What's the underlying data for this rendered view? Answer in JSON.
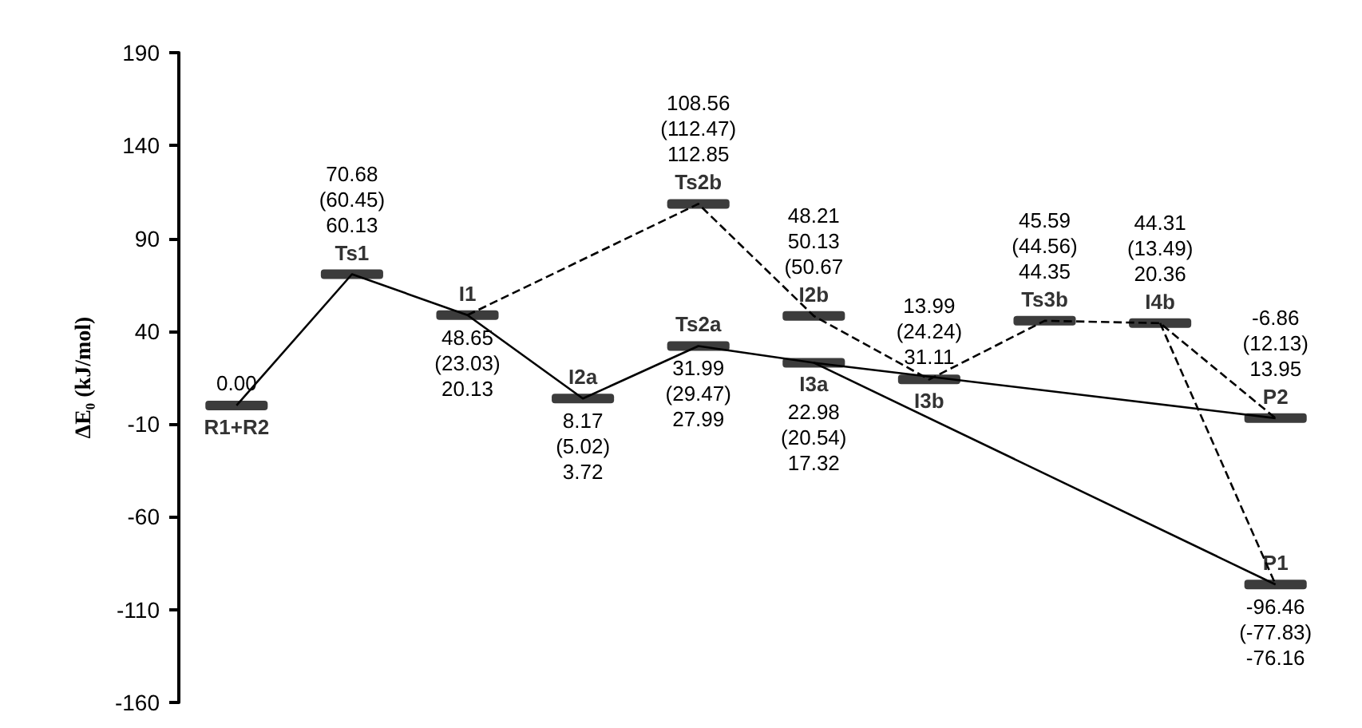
{
  "chart_data": {
    "type": "line",
    "ylabel": "ΔE₀ (kJ/mol)",
    "categories": [
      null,
      null,
      null,
      null,
      null,
      null,
      null,
      null,
      null,
      null
    ],
    "ylim": [
      -160,
      190
    ],
    "yticks": [
      -160,
      -110,
      -60,
      -10,
      40,
      90,
      140,
      190
    ],
    "tick_labels": "y",
    "grid": false,
    "series": [
      {
        "line_style": "solid",
        "color": "#000000",
        "values": [
          0.0,
          70.68,
          48.65,
          3.72,
          31.99,
          22.98,
          null,
          null,
          null,
          -96.46
        ],
        "value_labels": [
          "0.00",
          "70.68\n(60.45)\n60.13",
          "48.65\n(23.03)\n20.13",
          "8.17\n(5.02)\n3.72",
          "31.99\n(29.47)\n27.99",
          "22.98\n(20.54)\n17.32",
          null,
          null,
          null,
          "-96.46\n(-77.83)\n-76.16"
        ]
      },
      {
        "line_style": "solid",
        "color": "#000000",
        "values": [
          null,
          null,
          null,
          null,
          null,
          22.98,
          null,
          null,
          null,
          -6.86
        ],
        "value_labels": [
          null,
          null,
          null,
          null,
          null,
          null,
          null,
          null,
          null,
          "-6.86\n(12.13)\n13.95"
        ]
      },
      {
        "line_style": "dashed",
        "color": "#000000",
        "values": [
          null,
          null,
          48.65,
          null,
          108.56,
          48.21,
          13.99,
          45.59,
          44.31,
          -6.86
        ],
        "value_labels": [
          null,
          null,
          null,
          null,
          "108.56\n(112.47)\n112.85",
          "48.21\n50.13\n(50.67",
          "13.99\n(24.24)\n31.11",
          "45.59\n(44.56)\n44.35",
          "44.31\n(13.49)\n20.36",
          null
        ]
      },
      {
        "line_style": "dashed",
        "color": "#000000",
        "values": [
          null,
          null,
          null,
          null,
          null,
          null,
          null,
          null,
          44.31,
          -96.46
        ]
      }
    ],
    "annotations": [
      "R1+R2",
      "Ts1",
      "I1",
      "I2a",
      "Ts2a",
      "Ts2b",
      "I3a",
      "I2b",
      "I3b",
      "Ts3b",
      "I4b",
      "P2",
      "P1"
    ]
  }
}
